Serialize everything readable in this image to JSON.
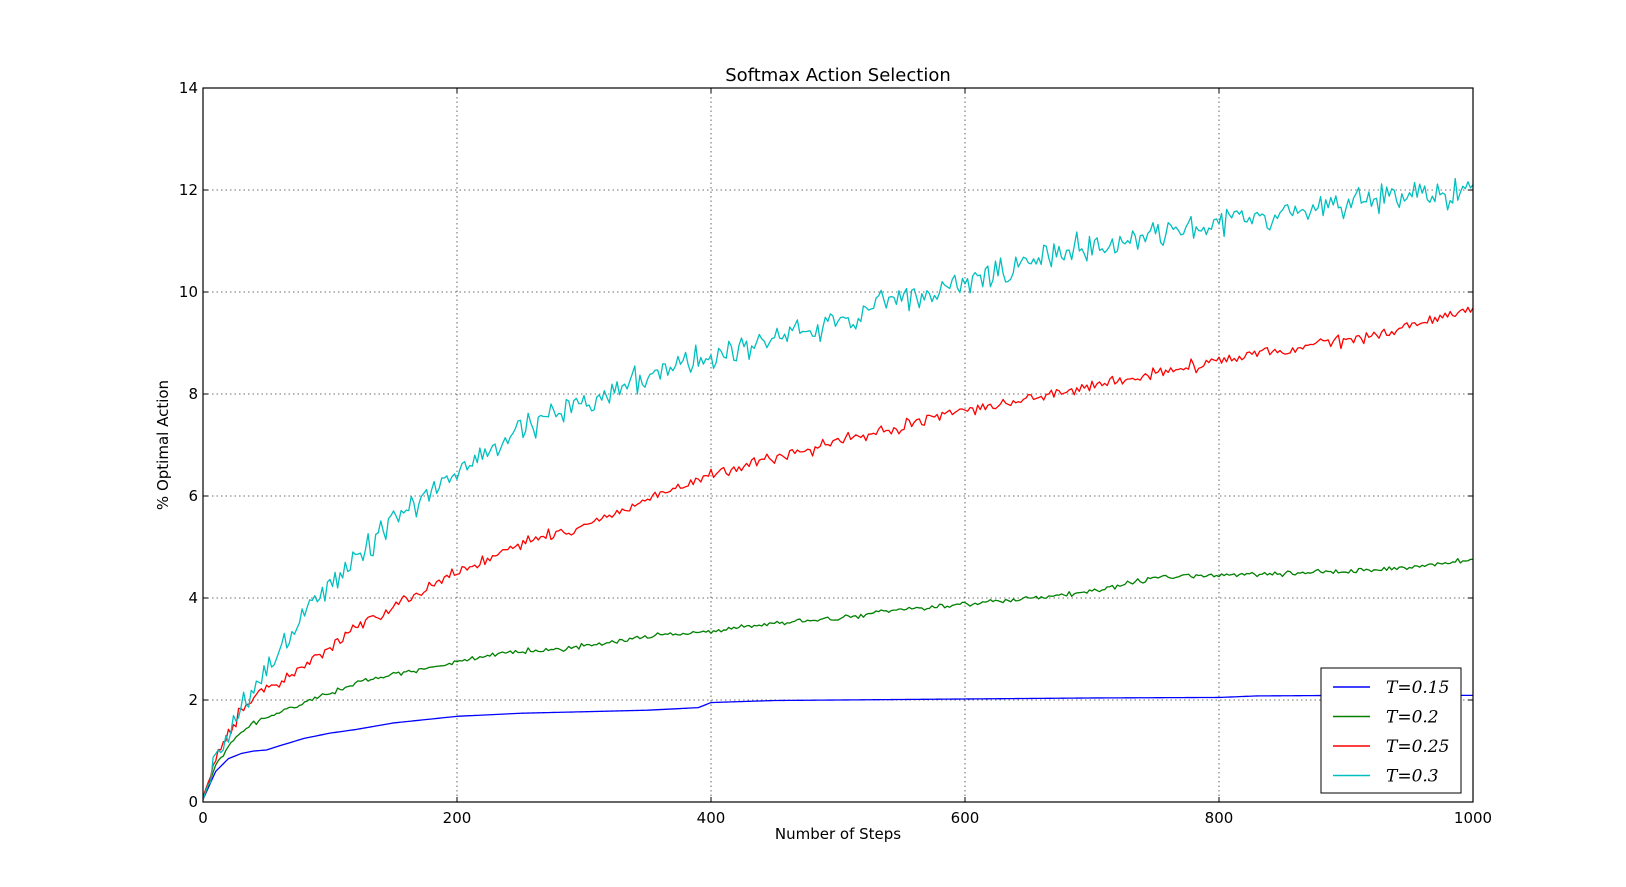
{
  "chart_data": {
    "type": "line",
    "title": "Softmax Action Selection",
    "xlabel": "Number of Steps",
    "ylabel": "% Optimal Action",
    "xlim": [
      0,
      1000
    ],
    "ylim": [
      0,
      14
    ],
    "xticks": [
      "0",
      "200",
      "400",
      "600",
      "800",
      "1000"
    ],
    "yticks": [
      "0",
      "2",
      "4",
      "6",
      "8",
      "10",
      "12",
      "14"
    ],
    "grid": true,
    "legend_position": "lower-right",
    "series": [
      {
        "name": "T=0.15",
        "color": "#0000ff",
        "noise": 0.0,
        "x": [
          0,
          10,
          20,
          30,
          40,
          50,
          60,
          80,
          100,
          120,
          150,
          200,
          250,
          300,
          350,
          390,
          400,
          450,
          500,
          600,
          700,
          800,
          830,
          900,
          1000
        ],
        "values": [
          0.05,
          0.6,
          0.85,
          0.95,
          1.0,
          1.02,
          1.1,
          1.25,
          1.35,
          1.42,
          1.55,
          1.68,
          1.74,
          1.77,
          1.8,
          1.85,
          1.95,
          1.99,
          2.0,
          2.02,
          2.04,
          2.05,
          2.08,
          2.09,
          2.09
        ]
      },
      {
        "name": "T=0.2",
        "color": "#008000",
        "noise": 0.04,
        "x": [
          0,
          10,
          20,
          30,
          40,
          50,
          70,
          100,
          130,
          160,
          200,
          250,
          300,
          350,
          400,
          450,
          500,
          550,
          600,
          650,
          700,
          750,
          800,
          850,
          900,
          950,
          1000
        ],
        "values": [
          0.05,
          0.7,
          1.1,
          1.35,
          1.55,
          1.65,
          1.85,
          2.15,
          2.4,
          2.55,
          2.75,
          2.95,
          3.05,
          3.25,
          3.35,
          3.5,
          3.6,
          3.78,
          3.88,
          3.98,
          4.12,
          4.4,
          4.45,
          4.47,
          4.52,
          4.6,
          4.75
        ]
      },
      {
        "name": "T=0.25",
        "color": "#ff0000",
        "noise": 0.1,
        "x": [
          0,
          10,
          20,
          30,
          40,
          50,
          70,
          100,
          130,
          160,
          200,
          250,
          300,
          350,
          400,
          450,
          500,
          550,
          600,
          650,
          700,
          750,
          800,
          850,
          900,
          950,
          1000
        ],
        "values": [
          0.1,
          0.8,
          1.35,
          1.8,
          2.05,
          2.2,
          2.5,
          3.05,
          3.55,
          4.0,
          4.5,
          5.05,
          5.4,
          5.95,
          6.4,
          6.75,
          7.05,
          7.35,
          7.7,
          7.9,
          8.15,
          8.4,
          8.65,
          8.85,
          9.05,
          9.3,
          9.7
        ]
      },
      {
        "name": "T=0.3",
        "color": "#00bfbf",
        "noise": 0.25,
        "x": [
          0,
          10,
          20,
          30,
          40,
          50,
          60,
          80,
          100,
          130,
          160,
          200,
          250,
          300,
          350,
          400,
          450,
          500,
          550,
          600,
          650,
          700,
          750,
          800,
          850,
          900,
          950,
          1000
        ],
        "values": [
          0.05,
          0.8,
          1.3,
          1.8,
          2.1,
          2.6,
          3.1,
          3.7,
          4.3,
          5.0,
          5.7,
          6.5,
          7.3,
          7.8,
          8.4,
          8.75,
          9.1,
          9.4,
          9.85,
          10.15,
          10.55,
          10.9,
          11.15,
          11.35,
          11.55,
          11.75,
          11.95,
          11.95
        ]
      }
    ]
  }
}
